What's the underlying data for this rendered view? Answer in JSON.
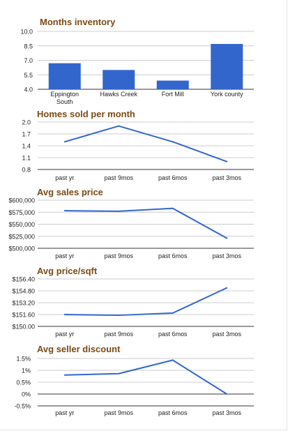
{
  "charts": [
    {
      "title": "Months inventory",
      "chart_data": {
        "type": "bar",
        "categories": [
          [
            "Eppington",
            "South"
          ],
          [
            "Hawks Creek"
          ],
          [
            "Fort Mill"
          ],
          [
            "York county"
          ]
        ],
        "values": [
          6.7,
          6.0,
          4.9,
          8.7
        ],
        "ylim": [
          4.0,
          10.0
        ],
        "yticks": [
          "10.0",
          "8.5",
          "7.0",
          "5.5",
          "4.0"
        ],
        "ytick_values": [
          10.0,
          8.5,
          7.0,
          5.5,
          4.0
        ],
        "grid": true,
        "color": "#3366cc"
      }
    },
    {
      "title": "Homes sold per month",
      "chart_data": {
        "type": "line",
        "categories": [
          "past yr",
          "past 9mos",
          "past 6mos",
          "past 3mos"
        ],
        "values": [
          1.5,
          1.9,
          1.5,
          1.0
        ],
        "ylim": [
          0.8,
          2.0
        ],
        "yticks": [
          "2.0",
          "1.7",
          "1.4",
          "1.1",
          "0.8"
        ],
        "ytick_values": [
          2.0,
          1.7,
          1.4,
          1.1,
          0.8
        ],
        "grid": true,
        "color": "#3366cc"
      }
    },
    {
      "title": "Avg sales price",
      "chart_data": {
        "type": "line",
        "categories": [
          "past yr",
          "past 9mos",
          "past 6mos",
          "past 3mos"
        ],
        "values": [
          578000,
          577000,
          583000,
          521000
        ],
        "ylim": [
          500000,
          600000
        ],
        "yticks": [
          "$600,000",
          "$575,000",
          "$550,000",
          "$525,000",
          "$500,000"
        ],
        "ytick_values": [
          600000,
          575000,
          550000,
          525000,
          500000
        ],
        "grid": true,
        "color": "#3366cc"
      }
    },
    {
      "title": "Avg price/sqft",
      "chart_data": {
        "type": "line",
        "categories": [
          "past yr",
          "past 9mos",
          "past 6mos",
          "past 3mos"
        ],
        "values": [
          151.6,
          151.5,
          151.8,
          155.2
        ],
        "ylim": [
          150.0,
          156.4
        ],
        "yticks": [
          "$156.40",
          "$154.80",
          "$153.20",
          "$151.60",
          "$150.00"
        ],
        "ytick_values": [
          156.4,
          154.8,
          153.2,
          151.6,
          150.0
        ],
        "grid": true,
        "color": "#3366cc"
      }
    },
    {
      "title": "Avg seller discount",
      "chart_data": {
        "type": "line",
        "categories": [
          "past yr",
          "past 9mos",
          "past 6mos",
          "past 3mos"
        ],
        "values": [
          0.8,
          0.86,
          1.43,
          0.0
        ],
        "ylim": [
          -0.5,
          1.5
        ],
        "yticks": [
          "1.5%",
          "1%",
          "0.5%",
          "0%",
          "-0.5%"
        ],
        "ytick_values": [
          1.5,
          1.0,
          0.5,
          0.0,
          -0.5
        ],
        "zero_line": true,
        "grid": true,
        "color": "#3366cc"
      }
    }
  ]
}
